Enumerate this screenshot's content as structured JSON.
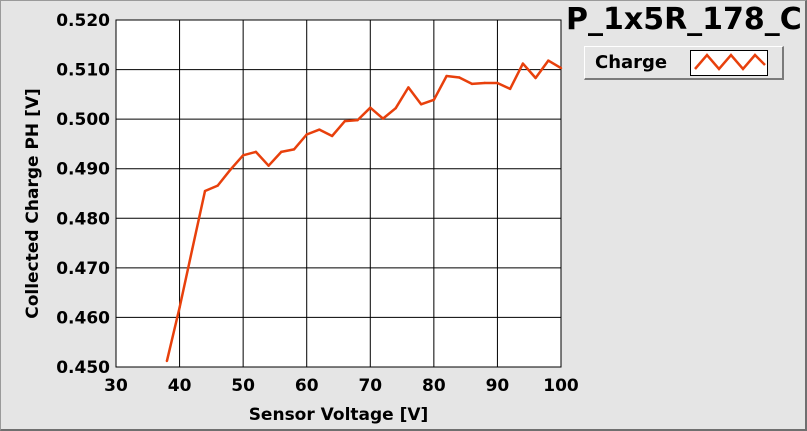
{
  "chart_data": {
    "type": "line",
    "title": "P_1x5R_178_C",
    "xlabel": "Sensor Voltage [V]",
    "ylabel": "Collected Charge PH [V]",
    "xlim": [
      30,
      100
    ],
    "ylim": [
      0.45,
      0.52
    ],
    "x_ticks": [
      "30",
      "40",
      "50",
      "60",
      "70",
      "80",
      "90",
      "100"
    ],
    "y_ticks": [
      "0.450",
      "0.460",
      "0.470",
      "0.480",
      "0.490",
      "0.500",
      "0.510",
      "0.520"
    ],
    "grid": true,
    "legend_position": "top-right",
    "series": [
      {
        "name": "Charge",
        "color": "#e8400c",
        "x": [
          38,
          40,
          42,
          44,
          46,
          48,
          50,
          52,
          54,
          56,
          58,
          60,
          62,
          64,
          66,
          68,
          70,
          72,
          74,
          76,
          78,
          80,
          82,
          84,
          86,
          88,
          90,
          92,
          94,
          96,
          98,
          100
        ],
        "y": [
          0.4512,
          0.462,
          0.4738,
          0.4855,
          0.4866,
          0.4898,
          0.4927,
          0.4934,
          0.4906,
          0.4934,
          0.4939,
          0.4969,
          0.4979,
          0.4966,
          0.4996,
          0.4998,
          0.5023,
          0.5001,
          0.5022,
          0.5064,
          0.503,
          0.5039,
          0.5087,
          0.5084,
          0.5071,
          0.5073,
          0.5073,
          0.5061,
          0.5112,
          0.5083,
          0.5118,
          0.5103
        ]
      }
    ]
  }
}
